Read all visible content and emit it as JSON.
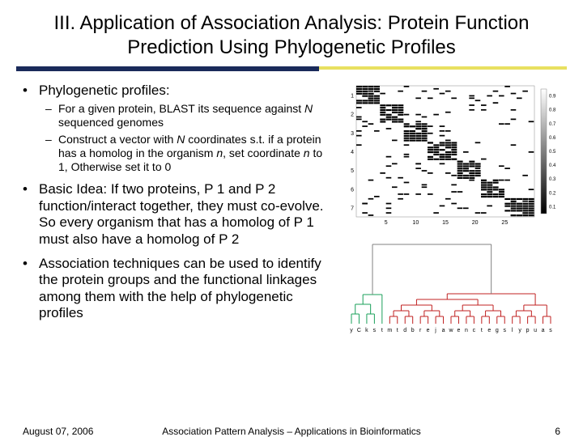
{
  "title": "III. Application of Association Analysis: Protein Function Prediction Using Phylogenetic Profiles",
  "bullets": {
    "b1": "Phylogenetic profiles:",
    "b1_sub1_a": "For a given protein, BLAST its sequence against ",
    "b1_sub1_n": "N",
    "b1_sub1_b": " sequenced genomes",
    "b1_sub2_a": "Construct a vector with ",
    "b1_sub2_N1": "N",
    "b1_sub2_b": " coordinates s.t. if a protein has a homolog in the organism ",
    "b1_sub2_n": "n",
    "b1_sub2_c": ", set coordinate ",
    "b1_sub2_n2": "n",
    "b1_sub2_d": " to 1, Otherwise set it to 0",
    "b2": "Basic Idea: If two proteins, P 1 and P 2 function/interact together, they must co-evolve. So every organism that has a homolog of P 1 must also have a homolog of P 2",
    "b3": "Association techniques can be used to identify the protein groups and the functional linkages among them with the help of phylogenetic profiles"
  },
  "heatmap": {
    "y_ticks": [
      "1",
      "2",
      "3",
      "4",
      "5",
      "6",
      "7"
    ],
    "x_ticks": [
      "5",
      "10",
      "15",
      "20",
      "25"
    ],
    "colorbar_ticks": [
      "0.9",
      "0.8",
      "0.7",
      "0.6",
      "0.5",
      "0.4",
      "0.3",
      "0.2",
      "0.1"
    ],
    "rows": 56,
    "cols": 30,
    "line_color": "#000000",
    "bg_color": "#ffffff"
  },
  "dendrogram": {
    "labels": [
      "y",
      "C",
      "k",
      "s",
      "t",
      "m",
      "t",
      "d",
      "b",
      "r",
      "e",
      "j",
      "a",
      "w",
      "e",
      "n",
      "c",
      "t",
      "e",
      "g",
      "s",
      "l",
      "y",
      "p",
      "u",
      "a",
      "s"
    ],
    "colors": [
      "#1aa05a",
      "#1aa05a",
      "#1aa05a",
      "#1aa05a",
      "#1aa05a",
      "#c02020",
      "#c02020",
      "#c02020",
      "#c02020",
      "#c02020",
      "#c02020",
      "#c02020",
      "#c02020",
      "#c02020",
      "#c02020",
      "#c02020",
      "#c02020"
    ],
    "axis_color": "#808080"
  },
  "footer": {
    "date": "August 07, 2006",
    "center": "Association Pattern Analysis – Applications in Bioinformatics",
    "page": "6"
  },
  "colors": {
    "underline_navy": "#1a2a5a",
    "underline_yellow": "#e8e060"
  }
}
